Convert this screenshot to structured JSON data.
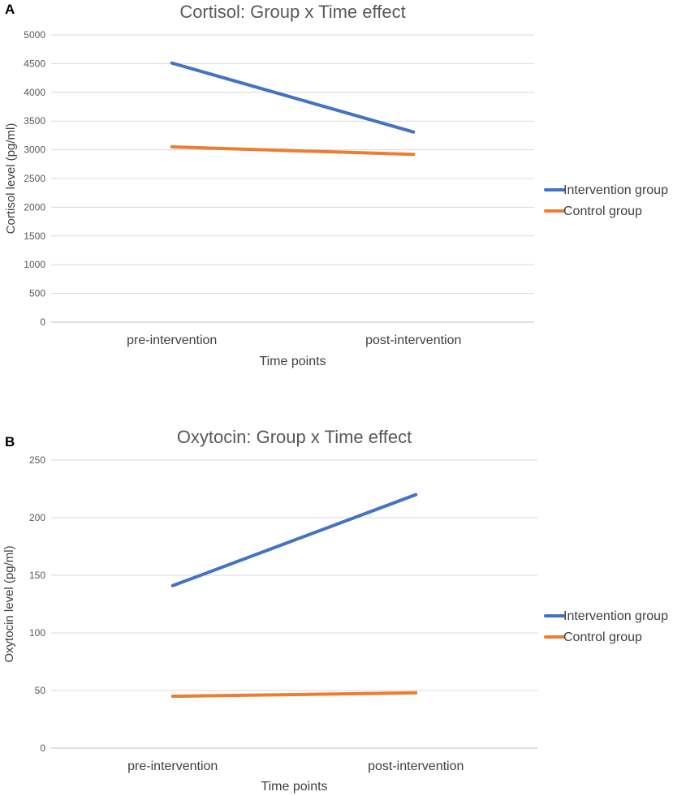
{
  "chart_data": [
    {
      "panel_label": "A",
      "type": "line",
      "title": "Cortisol: Group x Time effect",
      "xlabel": "Time points",
      "ylabel": "Cortisol level (pg/ml)",
      "categories": [
        "pre-intervention",
        "post-intervention"
      ],
      "ylim": [
        0,
        5000
      ],
      "yticks": [
        "0",
        "500",
        "1000",
        "1500",
        "2000",
        "2500",
        "3000",
        "3500",
        "4000",
        "4500",
        "5000"
      ],
      "grid": true,
      "legend_position": "right",
      "series": [
        {
          "name": "Intervention group",
          "color": "#4472C4",
          "values": [
            4510,
            3310
          ]
        },
        {
          "name": "Control group",
          "color": "#ED7D31",
          "values": [
            3050,
            2920
          ]
        }
      ]
    },
    {
      "panel_label": "B",
      "type": "line",
      "title": "Oxytocin: Group x Time effect",
      "xlabel": "Time points",
      "ylabel": "Oxytocin level (pg/ml)",
      "categories": [
        "pre-intervention",
        "post-intervention"
      ],
      "ylim": [
        0,
        250
      ],
      "yticks": [
        "0",
        "50",
        "100",
        "150",
        "200",
        "250"
      ],
      "grid": true,
      "legend_position": "right",
      "series": [
        {
          "name": "Intervention group",
          "color": "#4472C4",
          "values": [
            141,
            220
          ]
        },
        {
          "name": "Control group",
          "color": "#ED7D31",
          "values": [
            45,
            48
          ]
        }
      ]
    }
  ]
}
